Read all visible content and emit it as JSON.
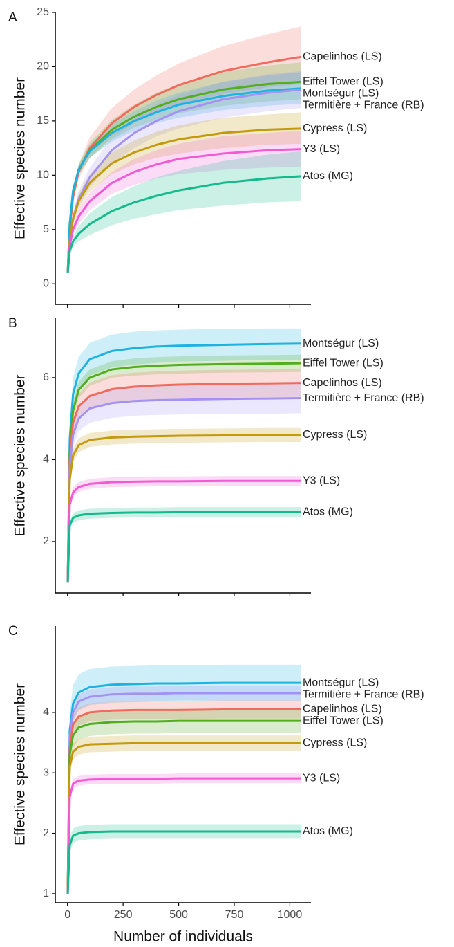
{
  "chart_data": [
    {
      "type": "line",
      "panel": "A",
      "y_label": "Effective species number",
      "x": [
        1,
        10,
        25,
        50,
        100,
        200,
        300,
        400,
        500,
        700,
        900,
        1050
      ],
      "xlim": [
        -55,
        1095
      ],
      "xticks": [
        0,
        250,
        500,
        750,
        1000
      ],
      "ylim": [
        -1.9,
        25
      ],
      "yticks": [
        0,
        5,
        10,
        15,
        20,
        25
      ],
      "series": [
        {
          "name": "Capelinhos (LS)",
          "color": "#ee6b5e",
          "values": [
            1,
            5,
            8,
            10.3,
            12.5,
            14.8,
            16.3,
            17.4,
            18.3,
            19.6,
            20.4,
            20.9
          ],
          "upper": [
            1,
            5.3,
            8.6,
            11,
            13.5,
            16.2,
            17.9,
            19.2,
            20.3,
            21.9,
            23,
            23.7
          ],
          "lower": [
            1,
            4.7,
            7.5,
            9.7,
            11.6,
            13.5,
            14.8,
            15.8,
            16.5,
            17.5,
            18.1,
            18.4
          ]
        },
        {
          "name": "Eiffel Tower (LS)",
          "color": "#53ad1f",
          "values": [
            1,
            5.5,
            8.5,
            10.5,
            12.3,
            14.2,
            15.4,
            16.3,
            17,
            17.9,
            18.4,
            18.6
          ],
          "upper": [
            1,
            5.7,
            8.9,
            11,
            13,
            15.1,
            16.5,
            17.6,
            18.4,
            19.5,
            20.1,
            20.4
          ],
          "lower": [
            1,
            5.3,
            8.1,
            10,
            11.6,
            13.3,
            14.4,
            15.1,
            15.7,
            16.4,
            16.8,
            17
          ]
        },
        {
          "name": "Montségur (LS)",
          "color": "#1eb2e0",
          "values": [
            1,
            5.5,
            8.6,
            10.5,
            12.2,
            13.9,
            15,
            15.8,
            16.5,
            17.3,
            17.8,
            18
          ],
          "upper": [
            1,
            5.7,
            8.9,
            10.9,
            12.8,
            14.7,
            15.9,
            16.9,
            17.6,
            18.6,
            19.2,
            19.5
          ],
          "lower": [
            1,
            5.3,
            8.3,
            10.1,
            11.6,
            13.1,
            14.1,
            14.8,
            15.3,
            16,
            16.4,
            16.6
          ]
        },
        {
          "name": "Termitière + France (RB)",
          "color": "#a492f2",
          "values": [
            1,
            4,
            6,
            7.8,
            9.8,
            12.3,
            13.9,
            15,
            15.9,
            17,
            17.6,
            17.9
          ],
          "upper": [
            1,
            4.3,
            6.5,
            8.5,
            10.7,
            13.5,
            15.2,
            16.5,
            17.4,
            18.6,
            19.3,
            19.6
          ],
          "lower": [
            1,
            3.7,
            5.5,
            7.1,
            8.9,
            11.1,
            12.5,
            13.6,
            14.3,
            15.3,
            15.9,
            16.2
          ]
        },
        {
          "name": "Cypress (LS)",
          "color": "#c3990e",
          "values": [
            1,
            4,
            6,
            7.6,
            9.3,
            11.1,
            12.1,
            12.8,
            13.3,
            13.9,
            14.2,
            14.3
          ],
          "upper": [
            1,
            4.3,
            6.5,
            8.3,
            10.1,
            12.1,
            13.2,
            14,
            14.6,
            15.3,
            15.6,
            15.8
          ],
          "lower": [
            1,
            3.7,
            5.5,
            6.9,
            8.5,
            10.1,
            11,
            11.6,
            12,
            12.5,
            12.8,
            12.9
          ]
        },
        {
          "name": "Y3 (LS)",
          "color": "#f25ad4",
          "values": [
            1,
            3.5,
            5,
            6.2,
            7.6,
            9.3,
            10.3,
            11,
            11.5,
            12,
            12.3,
            12.4
          ],
          "upper": [
            1,
            3.8,
            5.5,
            6.9,
            8.4,
            10.3,
            11.5,
            12.3,
            12.9,
            13.6,
            13.9,
            14.1
          ],
          "lower": [
            1,
            3.2,
            4.5,
            5.5,
            6.8,
            8.3,
            9.1,
            9.7,
            10.1,
            10.5,
            10.7,
            10.8
          ]
        },
        {
          "name": "Atos (MG)",
          "color": "#14b98c",
          "values": [
            1,
            3,
            3.9,
            4.6,
            5.5,
            6.7,
            7.5,
            8.1,
            8.6,
            9.3,
            9.7,
            9.9
          ],
          "upper": [
            1,
            3.3,
            4.4,
            5.3,
            6.5,
            8,
            9,
            9.8,
            10.4,
            11.3,
            11.9,
            12.2
          ],
          "lower": [
            1,
            2.7,
            3.4,
            3.9,
            4.5,
            5.4,
            6,
            6.4,
            6.8,
            7.2,
            7.5,
            7.6
          ]
        }
      ]
    },
    {
      "type": "line",
      "panel": "B",
      "y_label": "Effective species number",
      "x": [
        1,
        10,
        25,
        50,
        100,
        200,
        300,
        400,
        500,
        700,
        900,
        1050
      ],
      "xlim": [
        -55,
        1095
      ],
      "xticks": [
        0,
        250,
        500,
        750,
        1000
      ],
      "ylim": [
        0.75,
        7.45
      ],
      "yticks": [
        2,
        4,
        6
      ],
      "series": [
        {
          "name": "Montségur (LS)",
          "color": "#1eb2e0",
          "values": [
            1,
            4.5,
            5.6,
            6.1,
            6.45,
            6.65,
            6.72,
            6.76,
            6.78,
            6.8,
            6.82,
            6.83
          ],
          "upper": [
            1,
            4.8,
            6,
            6.5,
            6.85,
            7.05,
            7.12,
            7.15,
            7.17,
            7.19,
            7.2,
            7.2
          ],
          "lower": [
            1,
            4.2,
            5.2,
            5.7,
            6.05,
            6.25,
            6.32,
            6.36,
            6.39,
            6.41,
            6.43,
            6.44
          ]
        },
        {
          "name": "Eiffel Tower (LS)",
          "color": "#53ad1f",
          "values": [
            1,
            4.2,
            5.2,
            5.7,
            6,
            6.2,
            6.26,
            6.29,
            6.31,
            6.33,
            6.34,
            6.35
          ],
          "upper": [
            1,
            4.4,
            5.4,
            5.9,
            6.2,
            6.4,
            6.47,
            6.5,
            6.52,
            6.54,
            6.55,
            6.56
          ],
          "lower": [
            1,
            4,
            5,
            5.5,
            5.8,
            6,
            6.05,
            6.08,
            6.1,
            6.12,
            6.13,
            6.14
          ]
        },
        {
          "name": "Capelinhos (LS)",
          "color": "#ee6b5e",
          "values": [
            1,
            4,
            4.9,
            5.3,
            5.55,
            5.72,
            5.78,
            5.81,
            5.83,
            5.85,
            5.86,
            5.87
          ],
          "upper": [
            1,
            4.2,
            5.2,
            5.6,
            5.88,
            6.06,
            6.12,
            6.15,
            6.17,
            6.19,
            6.2,
            6.21
          ],
          "lower": [
            1,
            3.8,
            4.6,
            5,
            5.22,
            5.38,
            5.44,
            5.47,
            5.49,
            5.51,
            5.52,
            5.53
          ]
        },
        {
          "name": "Termitière + France (RB)",
          "color": "#a492f2",
          "values": [
            1,
            3.8,
            4.6,
            5,
            5.25,
            5.38,
            5.43,
            5.45,
            5.46,
            5.48,
            5.49,
            5.5
          ],
          "upper": [
            1,
            4,
            4.9,
            5.3,
            5.6,
            5.74,
            5.79,
            5.81,
            5.83,
            5.85,
            5.86,
            5.87
          ],
          "lower": [
            1,
            3.6,
            4.3,
            4.7,
            4.9,
            5.02,
            5.07,
            5.09,
            5.1,
            5.11,
            5.12,
            5.13
          ]
        },
        {
          "name": "Cypress (LS)",
          "color": "#c3990e",
          "values": [
            1,
            3.5,
            4.1,
            4.35,
            4.48,
            4.54,
            4.56,
            4.57,
            4.58,
            4.59,
            4.6,
            4.6
          ],
          "upper": [
            1,
            3.65,
            4.27,
            4.52,
            4.65,
            4.71,
            4.73,
            4.74,
            4.75,
            4.76,
            4.77,
            4.77
          ],
          "lower": [
            1,
            3.35,
            3.93,
            4.18,
            4.31,
            4.37,
            4.39,
            4.4,
            4.41,
            4.42,
            4.43,
            4.43
          ]
        },
        {
          "name": "Y3 (LS)",
          "color": "#f25ad4",
          "values": [
            1,
            2.9,
            3.2,
            3.33,
            3.41,
            3.45,
            3.46,
            3.47,
            3.47,
            3.48,
            3.48,
            3.48
          ],
          "upper": [
            1,
            3,
            3.32,
            3.45,
            3.53,
            3.57,
            3.58,
            3.59,
            3.59,
            3.6,
            3.6,
            3.6
          ],
          "lower": [
            1,
            2.8,
            3.08,
            3.21,
            3.29,
            3.33,
            3.34,
            3.35,
            3.35,
            3.36,
            3.36,
            3.36
          ]
        },
        {
          "name": "Atos (MG)",
          "color": "#14b98c",
          "values": [
            1,
            2.4,
            2.58,
            2.64,
            2.68,
            2.7,
            2.71,
            2.71,
            2.72,
            2.72,
            2.72,
            2.72
          ],
          "upper": [
            1,
            2.5,
            2.7,
            2.76,
            2.8,
            2.82,
            2.83,
            2.83,
            2.84,
            2.84,
            2.84,
            2.84
          ],
          "lower": [
            1,
            2.3,
            2.46,
            2.52,
            2.56,
            2.58,
            2.59,
            2.59,
            2.6,
            2.6,
            2.6,
            2.6
          ]
        }
      ]
    },
    {
      "type": "line",
      "panel": "C",
      "y_label": "Effective species number",
      "x_label": "Number of individuals",
      "x": [
        1,
        10,
        25,
        50,
        100,
        200,
        300,
        400,
        500,
        700,
        900,
        1050
      ],
      "xlim": [
        -55,
        1095
      ],
      "xticks": [
        0,
        250,
        500,
        750,
        1000
      ],
      "ylim": [
        0.85,
        5.43
      ],
      "yticks": [
        1,
        2,
        3,
        4
      ],
      "series": [
        {
          "name": "Montségur (LS)",
          "color": "#1eb2e0",
          "values": [
            1,
            3.7,
            4.15,
            4.33,
            4.42,
            4.46,
            4.47,
            4.48,
            4.48,
            4.49,
            4.49,
            4.49
          ],
          "upper": [
            1,
            4,
            4.45,
            4.63,
            4.72,
            4.76,
            4.77,
            4.78,
            4.78,
            4.79,
            4.79,
            4.79
          ],
          "lower": [
            1,
            3.4,
            3.85,
            4.03,
            4.12,
            4.16,
            4.17,
            4.18,
            4.18,
            4.19,
            4.19,
            4.19
          ]
        },
        {
          "name": "Termitière + France (RB)",
          "color": "#a492f2",
          "values": [
            1,
            3.6,
            4,
            4.18,
            4.26,
            4.3,
            4.31,
            4.31,
            4.32,
            4.32,
            4.32,
            4.32
          ],
          "upper": [
            1,
            3.72,
            4.12,
            4.3,
            4.38,
            4.42,
            4.43,
            4.43,
            4.44,
            4.44,
            4.44,
            4.44
          ],
          "lower": [
            1,
            3.48,
            3.88,
            4.06,
            4.14,
            4.18,
            4.19,
            4.19,
            4.2,
            4.2,
            4.2,
            4.2
          ]
        },
        {
          "name": "Capelinhos (LS)",
          "color": "#ee6b5e",
          "values": [
            1,
            3.4,
            3.8,
            3.93,
            4,
            4.03,
            4.04,
            4.04,
            4.04,
            4.05,
            4.05,
            4.05
          ],
          "upper": [
            1,
            3.55,
            3.95,
            4.08,
            4.15,
            4.18,
            4.19,
            4.19,
            4.19,
            4.2,
            4.2,
            4.2
          ],
          "lower": [
            1,
            3.25,
            3.65,
            3.78,
            3.85,
            3.88,
            3.89,
            3.89,
            3.89,
            3.9,
            3.9,
            3.9
          ]
        },
        {
          "name": "Eiffel Tower (LS)",
          "color": "#53ad1f",
          "values": [
            1,
            3.3,
            3.62,
            3.75,
            3.81,
            3.84,
            3.85,
            3.85,
            3.86,
            3.86,
            3.86,
            3.86
          ],
          "upper": [
            1,
            3.5,
            3.82,
            3.95,
            4.01,
            4.04,
            4.05,
            4.05,
            4.06,
            4.06,
            4.06,
            4.06
          ],
          "lower": [
            1,
            3.1,
            3.42,
            3.55,
            3.61,
            3.64,
            3.65,
            3.65,
            3.66,
            3.66,
            3.66,
            3.66
          ]
        },
        {
          "name": "Cypress (LS)",
          "color": "#c3990e",
          "values": [
            1,
            3.1,
            3.35,
            3.43,
            3.47,
            3.48,
            3.49,
            3.49,
            3.49,
            3.49,
            3.49,
            3.49
          ],
          "upper": [
            1,
            3.23,
            3.48,
            3.56,
            3.6,
            3.61,
            3.62,
            3.62,
            3.62,
            3.62,
            3.62,
            3.62
          ],
          "lower": [
            1,
            2.97,
            3.22,
            3.3,
            3.34,
            3.35,
            3.36,
            3.36,
            3.36,
            3.36,
            3.36,
            3.36
          ]
        },
        {
          "name": "Y3 (LS)",
          "color": "#f25ad4",
          "values": [
            1,
            2.6,
            2.82,
            2.87,
            2.89,
            2.9,
            2.9,
            2.9,
            2.91,
            2.91,
            2.91,
            2.91
          ],
          "upper": [
            1,
            2.68,
            2.9,
            2.95,
            2.97,
            2.98,
            2.98,
            2.98,
            2.99,
            2.99,
            2.99,
            2.99
          ],
          "lower": [
            1,
            2.52,
            2.74,
            2.79,
            2.81,
            2.82,
            2.82,
            2.82,
            2.83,
            2.83,
            2.83,
            2.83
          ]
        },
        {
          "name": "Atos (MG)",
          "color": "#14b98c",
          "values": [
            1,
            1.8,
            1.96,
            2,
            2.02,
            2.03,
            2.03,
            2.03,
            2.03,
            2.03,
            2.03,
            2.03
          ],
          "upper": [
            1,
            1.92,
            2.08,
            2.12,
            2.14,
            2.15,
            2.15,
            2.15,
            2.15,
            2.15,
            2.15,
            2.15
          ],
          "lower": [
            1,
            1.68,
            1.84,
            1.88,
            1.9,
            1.91,
            1.91,
            1.91,
            1.91,
            1.91,
            1.91,
            1.91
          ]
        }
      ]
    }
  ]
}
